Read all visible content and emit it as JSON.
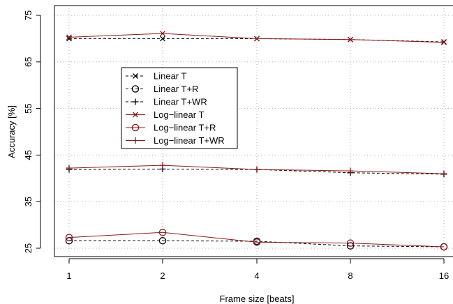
{
  "chart_data": {
    "type": "line",
    "title": "",
    "xlabel": "Frame size [beats]",
    "ylabel": "Accuracy [%]",
    "x": [
      "1",
      "2",
      "4",
      "8",
      "16"
    ],
    "ylim": [
      25,
      75
    ],
    "yticks": [
      25,
      35,
      45,
      55,
      65,
      75
    ],
    "grid": true,
    "legend_position": "upper-left",
    "colors": {
      "linear": "#000000",
      "loglinear": "#8b1a1a"
    },
    "series": [
      {
        "name": "Linear T",
        "marker": "x",
        "linestyle": "dashed",
        "color": "#000000",
        "values": [
          70.0,
          70.0,
          70.0,
          69.8,
          69.3
        ]
      },
      {
        "name": "Linear T+R",
        "marker": "o",
        "linestyle": "dashed",
        "color": "#000000",
        "values": [
          26.6,
          26.6,
          26.5,
          25.5,
          25.3
        ]
      },
      {
        "name": "Linear T+WR",
        "marker": "+",
        "linestyle": "dashed",
        "color": "#000000",
        "values": [
          41.9,
          42.0,
          41.9,
          41.2,
          40.9
        ]
      },
      {
        "name": "Log−linear T",
        "marker": "x",
        "linestyle": "solid",
        "color": "#8b1a1a",
        "values": [
          70.3,
          71.1,
          70.0,
          69.8,
          69.2
        ]
      },
      {
        "name": "Log−linear T+R",
        "marker": "o",
        "linestyle": "solid",
        "color": "#8b1a1a",
        "values": [
          27.3,
          28.4,
          26.3,
          26.1,
          25.3
        ]
      },
      {
        "name": "Log−linear T+WR",
        "marker": "+",
        "linestyle": "solid",
        "color": "#8b1a1a",
        "values": [
          42.2,
          42.8,
          41.9,
          41.6,
          41.0
        ]
      }
    ]
  }
}
